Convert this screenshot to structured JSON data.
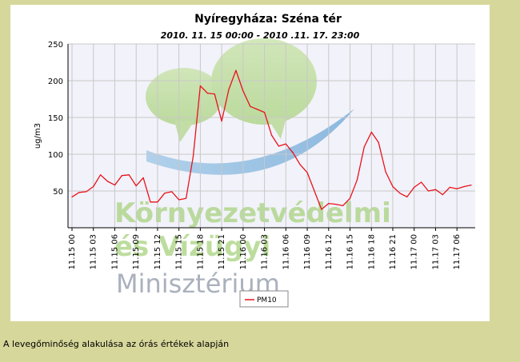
{
  "caption": "A levegőminőség alakulása az órás értékek alapján",
  "watermark": {
    "line1": "Környezetvédelmi",
    "line2": "és Vízügyi",
    "line3": "Minisztérium"
  },
  "colors": {
    "series": "#e8121a",
    "grid": "#c8c8c8",
    "page_bg": "#d6d79a",
    "watermark_green": "#9acb6a",
    "watermark_blue": "#5f9ec8",
    "watermark_gray": "#8e97a8"
  },
  "chart_data": {
    "type": "line",
    "title": "Nyíregyháza: Széna tér",
    "subtitle": "2010. 11. 15 00:00 - 2010 .11. 17. 23:00",
    "xlabel": "",
    "ylabel": "ug/m3",
    "ylim": [
      0,
      250
    ],
    "yticks": [
      50,
      100,
      150,
      200,
      250
    ],
    "grid": true,
    "legend_position": "bottom-center",
    "x_ticks": [
      "11.15 00",
      "11.15 03",
      "11.15 06",
      "11.15 09",
      "11.15 12",
      "11.15 15",
      "11.15 18",
      "11.15 21",
      "11.16 00",
      "11.16 03",
      "11.16 06",
      "11.16 09",
      "11.16 12",
      "11.16 15",
      "11.16 18",
      "11.16 21",
      "11.17 00",
      "11.17 03",
      "11.17 06"
    ],
    "series": [
      {
        "name": "PM10",
        "values": [
          42,
          48,
          49,
          56,
          72,
          63,
          58,
          71,
          72,
          57,
          68,
          35,
          35,
          47,
          49,
          38,
          40,
          97,
          193,
          183,
          182,
          145,
          188,
          214,
          186,
          165,
          161,
          157,
          126,
          111,
          114,
          102,
          86,
          75,
          50,
          25,
          33,
          32,
          30,
          40,
          65,
          110,
          130,
          116,
          76,
          56,
          47,
          42,
          55,
          62,
          50,
          52,
          45,
          55,
          53,
          56,
          58
        ]
      }
    ]
  }
}
